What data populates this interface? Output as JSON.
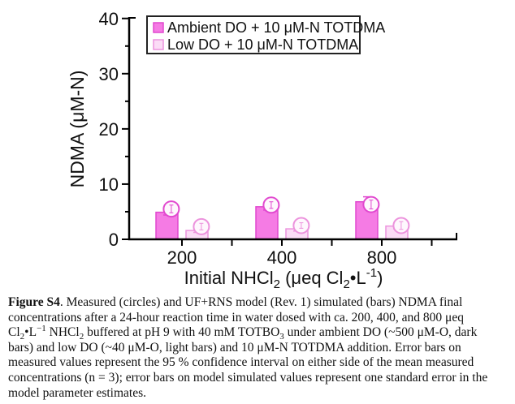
{
  "figure": {
    "caption_segments": [
      {
        "t": "Figure S4",
        "s": "bold"
      },
      {
        "t": ".  Measured (circles) and UF+RNS model (Rev. 1) simulated (bars) NDMA final concentrations after a 24-hour reaction time in water dosed with ca. 200, 400, and 800 μeq Cl",
        "s": "n"
      },
      {
        "t": "2",
        "s": "sub"
      },
      {
        "t": "•L",
        "s": "n"
      },
      {
        "t": "−1",
        "s": "sup"
      },
      {
        "t": " NHCl",
        "s": "n"
      },
      {
        "t": "2",
        "s": "sub"
      },
      {
        "t": " buffered at pH 9 with 40 mM TOTBO",
        "s": "n"
      },
      {
        "t": "3",
        "s": "sub"
      },
      {
        "t": " under ambient DO (~500 μM-O, dark bars) and low DO (~40 μM-O, light bars) and 10 μM-N TOTDMA addition.  Error bars on measured values represent the 95 % confidence interval on either side of the mean measured concentrations (n = 3); error bars on model simulated values represent one standard error in the model parameter estimates.",
        "s": "n"
      }
    ]
  },
  "chart_data": {
    "type": "bar",
    "title": "",
    "ylabel": "NDMA (μM-N)",
    "xlabel": "Initial NHCl2 (μeq Cl2•L-1)",
    "xlabel_segments": [
      {
        "t": "Initial NHCl",
        "s": "n"
      },
      {
        "t": "2",
        "s": "sub"
      },
      {
        "t": " (μeq Cl",
        "s": "n"
      },
      {
        "t": "2",
        "s": "sub"
      },
      {
        "t": "•L",
        "s": "n"
      },
      {
        "t": "-1",
        "s": "sup"
      },
      {
        "t": ")",
        "s": "n"
      }
    ],
    "categories": [
      "200",
      "400",
      "800"
    ],
    "ylim": [
      0,
      40
    ],
    "y_major_ticks": [
      0,
      10,
      20,
      30,
      40
    ],
    "y_minor_step": 5,
    "grid": false,
    "legend_position": "top-left-inside",
    "marker_note": "circles = measured values with error bars; bars = model simulated values with error bars",
    "series": [
      {
        "name": "Ambient DO + 10 μM-N TOTDMA",
        "bar_values": [
          4.9,
          5.9,
          6.8
        ],
        "bar_errors": [
          0.5,
          0.6,
          0.9
        ],
        "measured_values": [
          5.5,
          6.2,
          6.3
        ],
        "measured_errors": [
          0.7,
          0.6,
          0.8
        ],
        "fill": "#f57be4",
        "stroke": "#e148cf"
      },
      {
        "name": "Low DO + 10 μM-N TOTDMA",
        "bar_values": [
          1.6,
          1.9,
          2.4
        ],
        "bar_errors": [
          0.35,
          0.4,
          0.5
        ],
        "measured_values": [
          2.3,
          2.5,
          2.5
        ],
        "measured_errors": [
          0.6,
          0.5,
          0.7
        ],
        "fill": "#fbdcf6",
        "stroke": "#ec93dd"
      }
    ],
    "colors": {
      "axis": "#000000",
      "text": "#111111",
      "legend_border": "#222222",
      "marker_fill": "#fef7fd"
    }
  }
}
